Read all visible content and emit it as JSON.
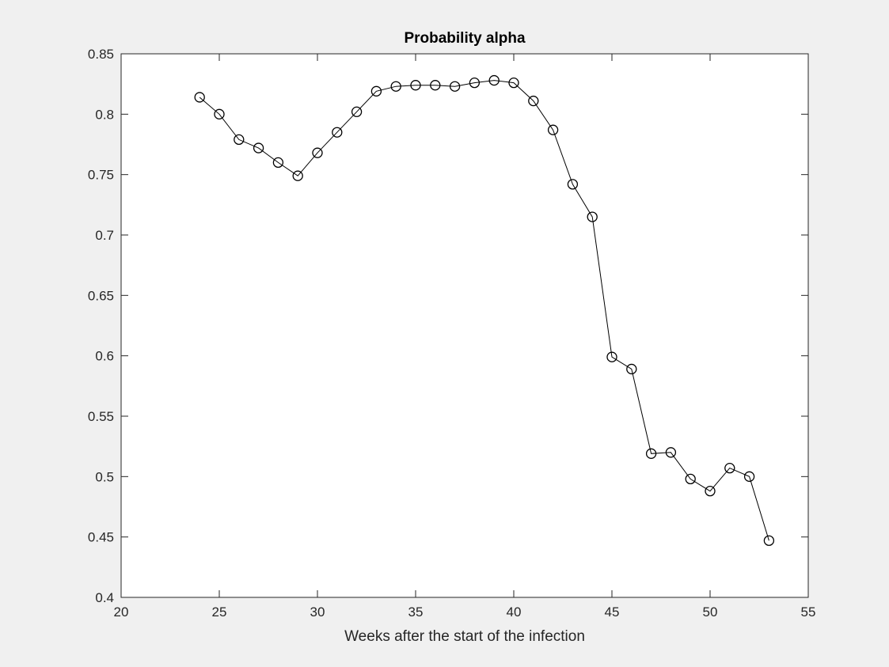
{
  "chart_data": {
    "type": "line",
    "title": "Probability alpha",
    "xlabel": "Weeks after the start of the infection",
    "ylabel": "",
    "xlim": [
      20,
      55
    ],
    "ylim": [
      0.4,
      0.85
    ],
    "xticks": [
      "20",
      "25",
      "30",
      "35",
      "40",
      "45",
      "50",
      "55"
    ],
    "yticks": [
      "0.4",
      "0.45",
      "0.5",
      "0.55",
      "0.6",
      "0.65",
      "0.7",
      "0.75",
      "0.8",
      "0.85"
    ],
    "grid": false,
    "marker": "circle",
    "series": [
      {
        "color": "#000000",
        "x": [
          24,
          25,
          26,
          27,
          28,
          29,
          30,
          31,
          32,
          33,
          34,
          35,
          36,
          37,
          38,
          39,
          40,
          41,
          42,
          43,
          44,
          45,
          46,
          47,
          48,
          49,
          50,
          51,
          52,
          53
        ],
        "y": [
          0.814,
          0.8,
          0.779,
          0.772,
          0.76,
          0.749,
          0.768,
          0.785,
          0.802,
          0.819,
          0.823,
          0.824,
          0.824,
          0.823,
          0.826,
          0.828,
          0.826,
          0.811,
          0.787,
          0.742,
          0.715,
          0.599,
          0.589,
          0.519,
          0.52,
          0.498,
          0.488,
          0.507,
          0.5,
          0.447
        ]
      }
    ]
  },
  "colors": {
    "figure_background": "#f0f0f0",
    "axes_background": "#ffffff",
    "axis_color": "#262626",
    "line_color": "#000000"
  }
}
